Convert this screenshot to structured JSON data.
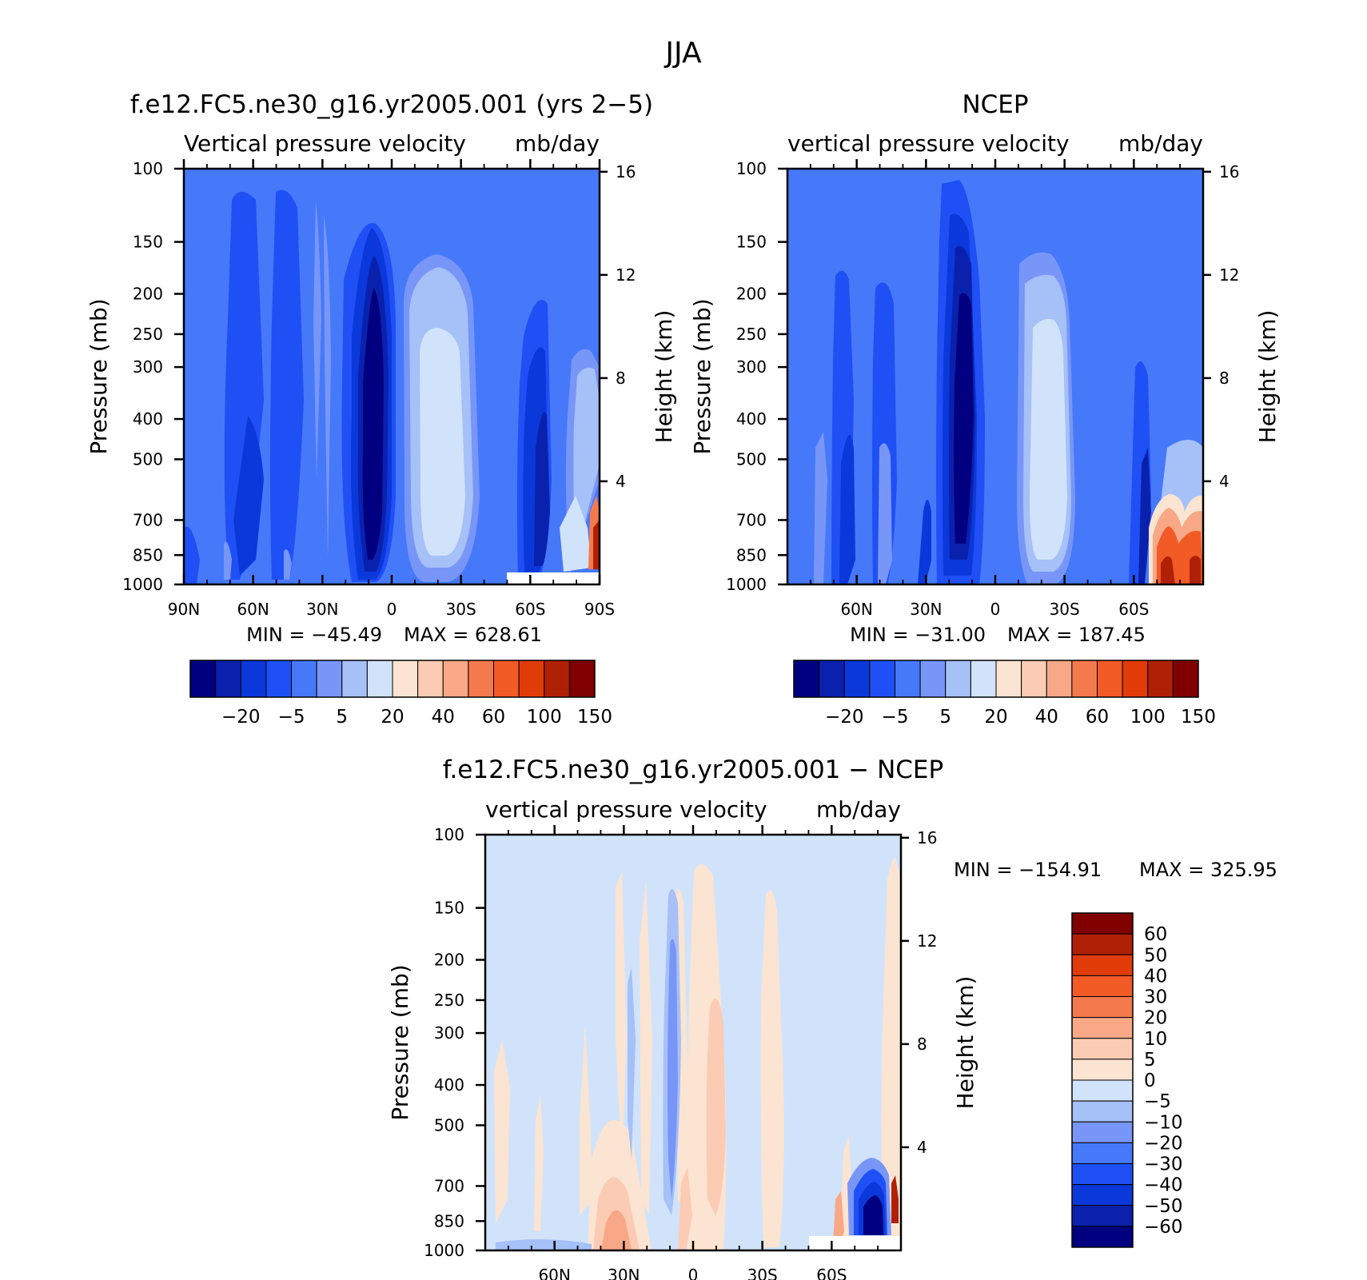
{
  "figure": {
    "title": "JJA"
  },
  "chart_data": [
    {
      "type": "heatmap",
      "title": "f.e12.FC5.ne30_g16.yr2005.001 (yrs 2−5)",
      "variable": "Vertical pressure velocity",
      "units": "mb/day",
      "xlabel": "",
      "ylabel": "Pressure (mb)",
      "y2label": "Height (km)",
      "x_tick_labels": [
        "90N",
        "60N",
        "30N",
        "0",
        "30S",
        "60S",
        "90S"
      ],
      "x_range": [
        90,
        -90
      ],
      "y_tick_values": [
        100,
        150,
        200,
        250,
        300,
        400,
        500,
        700,
        850,
        1000
      ],
      "y_scale": "log",
      "y_range": [
        1000,
        100
      ],
      "y2_tick_values": [
        16,
        12,
        8,
        4
      ],
      "min_text": "MIN = −45.49",
      "max_text": "MAX = 628.61",
      "min": -45.49,
      "max": 628.61,
      "colorbar": {
        "orientation": "horizontal",
        "labels": [
          "−20",
          "−5",
          "5",
          "20",
          "40",
          "60",
          "100",
          "150"
        ],
        "levels": [
          -40,
          -30,
          -20,
          -10,
          -5,
          0,
          5,
          10,
          20,
          30,
          40,
          50,
          60,
          80,
          100,
          120,
          150
        ]
      }
    },
    {
      "type": "heatmap",
      "title": "NCEP",
      "variable": "vertical pressure velocity",
      "units": "mb/day",
      "xlabel": "",
      "ylabel": "Pressure (mb)",
      "y2label": "Height (km)",
      "x_tick_labels": [
        "60N",
        "30N",
        "0",
        "30S",
        "60S"
      ],
      "x_range": [
        90,
        -90
      ],
      "y_tick_values": [
        100,
        150,
        200,
        250,
        300,
        400,
        500,
        700,
        850,
        1000
      ],
      "y_scale": "log",
      "y_range": [
        1000,
        100
      ],
      "y2_tick_values": [
        16,
        12,
        8,
        4
      ],
      "min_text": "MIN = −31.00",
      "max_text": "MAX = 187.45",
      "min": -31.0,
      "max": 187.45,
      "colorbar": {
        "orientation": "horizontal",
        "labels": [
          "−20",
          "−5",
          "5",
          "20",
          "40",
          "60",
          "100",
          "150"
        ],
        "levels": [
          -40,
          -30,
          -20,
          -10,
          -5,
          0,
          5,
          10,
          20,
          30,
          40,
          50,
          60,
          80,
          100,
          120,
          150
        ]
      }
    },
    {
      "type": "heatmap",
      "title": "f.e12.FC5.ne30_g16.yr2005.001 − NCEP",
      "variable": "vertical pressure velocity",
      "units": "mb/day",
      "xlabel": "",
      "ylabel": "Pressure (mb)",
      "y2label": "Height (km)",
      "x_tick_labels": [
        "60N",
        "30N",
        "0",
        "30S",
        "60S"
      ],
      "x_range": [
        90,
        -90
      ],
      "y_tick_values": [
        100,
        150,
        200,
        250,
        300,
        400,
        500,
        700,
        850,
        1000
      ],
      "y_scale": "log",
      "y_range": [
        1000,
        100
      ],
      "y2_tick_values": [
        16,
        12,
        8,
        4
      ],
      "min_text": "MIN = −154.91",
      "max_text": "MAX = 325.95",
      "min": -154.91,
      "max": 325.95,
      "colorbar": {
        "orientation": "vertical",
        "labels": [
          "60",
          "50",
          "40",
          "30",
          "20",
          "10",
          "5",
          "0",
          "−5",
          "−10",
          "−20",
          "−30",
          "−40",
          "−50",
          "−60"
        ],
        "levels": [
          -60,
          -50,
          -40,
          -30,
          -20,
          -10,
          -5,
          0,
          5,
          10,
          20,
          30,
          40,
          50,
          60
        ]
      }
    }
  ],
  "colors": {
    "main_ramp": [
      "#000080",
      "#0a21ad",
      "#0a38da",
      "#1e50f5",
      "#4678fa",
      "#7896f7",
      "#a6c0f8",
      "#d1e3fb",
      "#fbe4d2",
      "#fbcbb4",
      "#f8a886",
      "#f47a4e",
      "#f25a26",
      "#e13c07",
      "#b02005",
      "#800000"
    ],
    "diff_ramp": [
      "#000080",
      "#0a21ad",
      "#0a38da",
      "#1e50f5",
      "#4678fa",
      "#7896f7",
      "#a6c0f8",
      "#d1e3fb",
      "#fbe4d2",
      "#fbcbb4",
      "#f8a886",
      "#f47a4e",
      "#f25a26",
      "#e13c07",
      "#b02005",
      "#800000"
    ]
  }
}
